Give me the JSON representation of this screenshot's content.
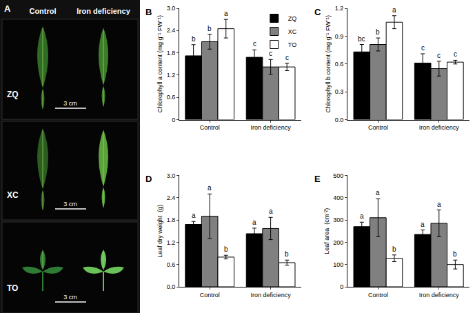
{
  "photo_panel": {
    "label": "A",
    "columns": [
      "Control",
      "Iron deficiency"
    ],
    "rows": [
      {
        "label": "ZQ",
        "scale_bar": "3 cm"
      },
      {
        "label": "XC",
        "scale_bar": "3 cm"
      },
      {
        "label": "TO",
        "scale_bar": "3 cm"
      }
    ]
  },
  "chart_data": [
    {
      "type": "bar",
      "panel": "B",
      "y_label": "Chlorophyll a content (mg g⁻¹ FW⁻¹)",
      "categories": [
        "Control",
        "Iron deficiency"
      ],
      "legend": "top right",
      "ylim": [
        0,
        3
      ],
      "yticks": [
        0,
        0.6,
        1.2,
        1.8,
        2.4,
        {
          "value": 3,
          "label": "3.0"
        }
      ],
      "series": [
        {
          "name": "ZQ",
          "color": "#000000",
          "values": [
            1.72,
            1.68
          ],
          "errors": [
            0.3,
            0.2
          ],
          "letters": [
            "b",
            "c"
          ]
        },
        {
          "name": "XC",
          "color": "#808080",
          "values": [
            2.1,
            1.42
          ],
          "errors": [
            0.2,
            0.2
          ],
          "letters": [
            "b",
            "c"
          ]
        },
        {
          "name": "TO",
          "color": "#ffffff",
          "values": [
            2.45,
            1.42
          ],
          "errors": [
            0.25,
            0.1
          ],
          "letters": [
            "a",
            "c"
          ]
        }
      ]
    },
    {
      "type": "bar",
      "panel": "C",
      "y_label": "Chlorophyll b content (mg g⁻¹ FW⁻¹)",
      "categories": [
        "Control",
        "Iron deficiency"
      ],
      "ylim": [
        0,
        1.2
      ],
      "yticks": [
        {
          "value": 0,
          "label": "0.0"
        },
        0.3,
        0.6,
        0.9,
        1.2
      ],
      "series": [
        {
          "name": "ZQ",
          "color": "#000000",
          "values": [
            0.73,
            0.61
          ],
          "errors": [
            0.08,
            0.1
          ],
          "letters": [
            "bc",
            "c"
          ]
        },
        {
          "name": "XC",
          "color": "#808080",
          "values": [
            0.81,
            0.55
          ],
          "errors": [
            0.07,
            0.08
          ],
          "letters": [
            "b",
            "c"
          ]
        },
        {
          "name": "TO",
          "color": "#ffffff",
          "values": [
            1.05,
            0.62
          ],
          "errors": [
            0.07,
            0.02
          ],
          "letters": [
            "a",
            "c"
          ]
        }
      ]
    },
    {
      "type": "bar",
      "panel": "D",
      "y_label": "Leaf dry weight  (g)",
      "categories": [
        "Control",
        "Iron deficiency"
      ],
      "ylim": [
        0,
        3
      ],
      "yticks": [
        {
          "value": 0,
          "label": "0.0"
        },
        0.6,
        1.2,
        1.8,
        2.4,
        {
          "value": 3,
          "label": "3.0"
        }
      ],
      "series": [
        {
          "name": "ZQ",
          "color": "#000000",
          "values": [
            1.68,
            1.43
          ],
          "errors": [
            0.08,
            0.15
          ],
          "letters": [
            "a",
            "a"
          ]
        },
        {
          "name": "XC",
          "color": "#808080",
          "values": [
            1.9,
            1.57
          ],
          "errors": [
            0.6,
            0.3
          ],
          "letters": [
            "a",
            "a"
          ]
        },
        {
          "name": "TO",
          "color": "#ffffff",
          "values": [
            0.8,
            0.65
          ],
          "errors": [
            0.05,
            0.07
          ],
          "letters": [
            "b",
            "b"
          ]
        }
      ]
    },
    {
      "type": "bar",
      "panel": "E",
      "y_label": "Leaf area  (cm⁻²)",
      "categories": [
        "Control",
        "Iron deficiency"
      ],
      "ylim": [
        0,
        500
      ],
      "yticks": [
        0,
        100,
        200,
        300,
        400,
        500
      ],
      "series": [
        {
          "name": "ZQ",
          "color": "#000000",
          "values": [
            270,
            235
          ],
          "errors": [
            20,
            20
          ],
          "letters": [
            "a",
            "a"
          ]
        },
        {
          "name": "XC",
          "color": "#808080",
          "values": [
            310,
            285
          ],
          "errors": [
            85,
            60
          ],
          "letters": [
            "a",
            "a"
          ]
        },
        {
          "name": "TO",
          "color": "#ffffff",
          "values": [
            128,
            100
          ],
          "errors": [
            15,
            20
          ],
          "letters": [
            "b",
            "b"
          ]
        }
      ]
    }
  ]
}
